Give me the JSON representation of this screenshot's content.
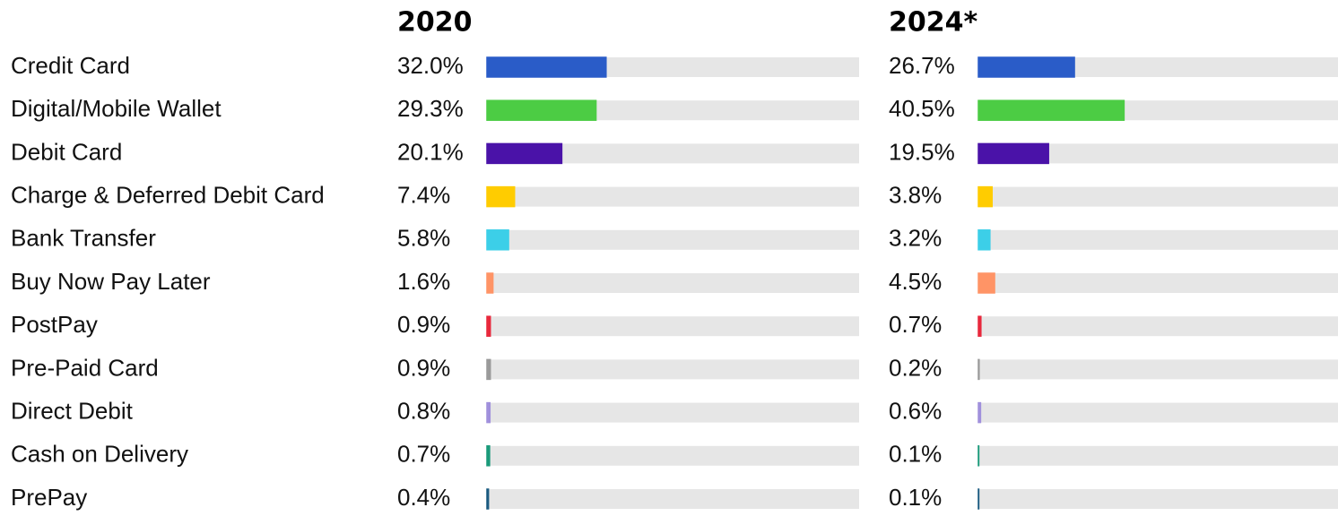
{
  "chart_data": {
    "type": "bar",
    "categories": [
      "Credit Card",
      "Digital/Mobile Wallet",
      "Debit Card",
      "Charge & Deferred Debit Card",
      "Bank Transfer",
      "Buy Now Pay Later",
      "PostPay",
      "Pre-Paid Card",
      "Direct Debit",
      "Cash on Delivery",
      "PrePay"
    ],
    "colors": [
      "#2a5cc8",
      "#4ccc44",
      "#4a12a8",
      "#ffcc00",
      "#3ccfe8",
      "#ff9466",
      "#e8283c",
      "#9a9a9a",
      "#a090dc",
      "#1a9a7a",
      "#1a5a80"
    ],
    "xlim": [
      0,
      100
    ],
    "series": [
      {
        "name": "2020",
        "values": [
          32.0,
          29.3,
          20.1,
          7.4,
          5.8,
          1.6,
          0.9,
          0.9,
          0.8,
          0.7,
          0.4
        ],
        "value_labels": [
          "32.0%",
          "29.3%",
          "20.1%",
          "7.4%",
          "5.8%",
          "1.6%",
          "0.9%",
          "0.9%",
          "0.8%",
          "0.7%",
          "0.4%"
        ]
      },
      {
        "name": "2024*",
        "values": [
          26.7,
          40.5,
          19.5,
          3.8,
          3.2,
          4.5,
          0.7,
          0.2,
          0.6,
          0.1,
          0.1
        ],
        "value_labels": [
          "26.7%",
          "40.5%",
          "19.5%",
          "3.8%",
          "3.2%",
          "4.5%",
          "0.7%",
          "0.2%",
          "0.6%",
          "0.1%",
          "0.1%"
        ]
      }
    ]
  }
}
